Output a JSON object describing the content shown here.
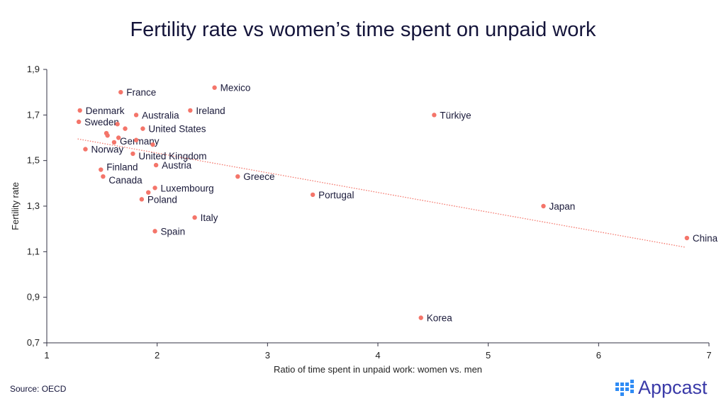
{
  "chart_data": {
    "type": "scatter",
    "title": "Fertility rate vs women’s time spent on unpaid work",
    "xlabel": "Ratio of time spent in unpaid work: women vs. men",
    "ylabel": "Fertility rate",
    "xlim": [
      1,
      7
    ],
    "ylim": [
      0.7,
      1.9
    ],
    "xticks": [
      "1",
      "2",
      "3",
      "4",
      "5",
      "6",
      "7"
    ],
    "yticks": [
      "0,7",
      "0,9",
      "1,1",
      "1,3",
      "1,5",
      "1,7",
      "1,9"
    ],
    "grid": false,
    "points": [
      {
        "label": "France",
        "x": 1.67,
        "y": 1.8
      },
      {
        "label": "Mexico",
        "x": 2.52,
        "y": 1.82
      },
      {
        "label": "Denmark",
        "x": 1.3,
        "y": 1.72
      },
      {
        "label": "Australia",
        "x": 1.81,
        "y": 1.7
      },
      {
        "label": "Ireland",
        "x": 2.3,
        "y": 1.72
      },
      {
        "label": "Türkiye",
        "x": 4.51,
        "y": 1.7
      },
      {
        "label": "Sweden",
        "x": 1.29,
        "y": 1.67
      },
      {
        "label": "",
        "x": 1.64,
        "y": 1.66
      },
      {
        "label": "",
        "x": 1.71,
        "y": 1.64
      },
      {
        "label": "United States",
        "x": 1.87,
        "y": 1.64
      },
      {
        "label": "",
        "x": 1.54,
        "y": 1.62
      },
      {
        "label": "",
        "x": 1.55,
        "y": 1.61
      },
      {
        "label": "",
        "x": 1.65,
        "y": 1.6
      },
      {
        "label": "Germany",
        "x": 1.61,
        "y": 1.58
      },
      {
        "label": "",
        "x": 1.81,
        "y": 1.59
      },
      {
        "label": "",
        "x": 1.96,
        "y": 1.57
      },
      {
        "label": "Norway",
        "x": 1.35,
        "y": 1.55
      },
      {
        "label": "United Kingdom",
        "x": 1.78,
        "y": 1.53
      },
      {
        "label": "Austria",
        "x": 1.99,
        "y": 1.48
      },
      {
        "label": "Finland",
        "x": 1.49,
        "y": 1.46
      },
      {
        "label": "Canada",
        "x": 1.51,
        "y": 1.43
      },
      {
        "label": "Greece",
        "x": 2.73,
        "y": 1.43
      },
      {
        "label": "Luxembourg",
        "x": 1.98,
        "y": 1.38
      },
      {
        "label": "",
        "x": 1.92,
        "y": 1.36
      },
      {
        "label": "Poland",
        "x": 1.86,
        "y": 1.33
      },
      {
        "label": "Portugal",
        "x": 3.41,
        "y": 1.35
      },
      {
        "label": "Japan",
        "x": 5.5,
        "y": 1.3
      },
      {
        "label": "Italy",
        "x": 2.34,
        "y": 1.25
      },
      {
        "label": "Spain",
        "x": 1.98,
        "y": 1.19
      },
      {
        "label": "China",
        "x": 6.8,
        "y": 1.16
      },
      {
        "label": "Korea",
        "x": 4.39,
        "y": 0.81
      }
    ],
    "trendline": {
      "x": [
        1.28,
        6.78
      ],
      "y": [
        1.595,
        1.12
      ]
    },
    "colors": {
      "point": "#f4756a",
      "trend": "#f4756a",
      "axis": "#333344"
    }
  },
  "source": "Source: OECD",
  "logo": "Appcast"
}
